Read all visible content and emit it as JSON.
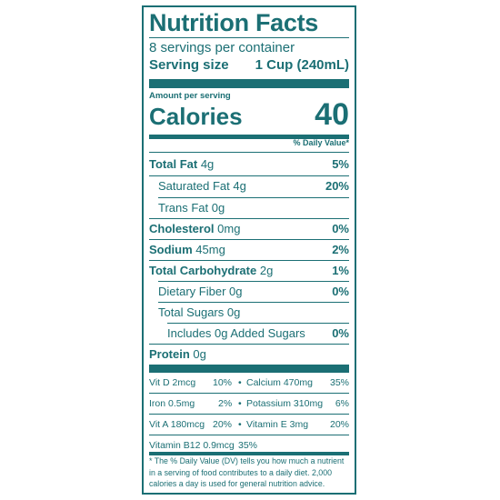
{
  "label": {
    "title": "Nutrition Facts",
    "servings": "8 servings per container",
    "serving_size_label": "Serving size",
    "serving_size_value": "1 Cup (240mL)",
    "amount_per_serving": "Amount per serving",
    "calories_label": "Calories",
    "calories_value": "40",
    "daily_value_header": "% Daily Value*",
    "nutrients": [
      {
        "name": "Total Fat",
        "amount": "4g",
        "pct": "5%"
      },
      {
        "name": "Saturated Fat",
        "amount": "4g",
        "pct": "20%"
      },
      {
        "name": "Trans Fat",
        "amount": "0g",
        "pct": ""
      },
      {
        "name": "Cholesterol",
        "amount": "0mg",
        "pct": "0%"
      },
      {
        "name": "Sodium",
        "amount": "45mg",
        "pct": "2%"
      },
      {
        "name": "Total Carbohydrate",
        "amount": "2g",
        "pct": "1%"
      },
      {
        "name": "Dietary Fiber",
        "amount": "0g",
        "pct": "0%"
      },
      {
        "name": "Total Sugars",
        "amount": "0g",
        "pct": ""
      },
      {
        "name": "Includes 0g Added Sugars",
        "amount": "",
        "pct": "0%"
      },
      {
        "name": "Protein",
        "amount": "0g",
        "pct": ""
      }
    ],
    "vitamins": [
      {
        "name": "Vit D 2mcg",
        "pct": "10%",
        "name2": "Calcium 470mg",
        "pct2": "35%"
      },
      {
        "name": "Iron 0.5mg",
        "pct": "2%",
        "name2": "Potassium 310mg",
        "pct2": "6%"
      },
      {
        "name": "Vit A 180mcg",
        "pct": "20%",
        "name2": "Vitamin E 3mg",
        "pct2": "20%"
      },
      {
        "name": "Vitamin B12 0.9mcg",
        "pct": "35%",
        "name2": "",
        "pct2": ""
      }
    ],
    "bullet": "•",
    "footnote": "* The % Daily Value (DV) tells you how much a nutrient in a serving of food contributes to a daily diet. 2,000 calories a day is used for general nutrition advice."
  },
  "colors": {
    "ink": "#1b6f74",
    "background": "#ffffff"
  }
}
